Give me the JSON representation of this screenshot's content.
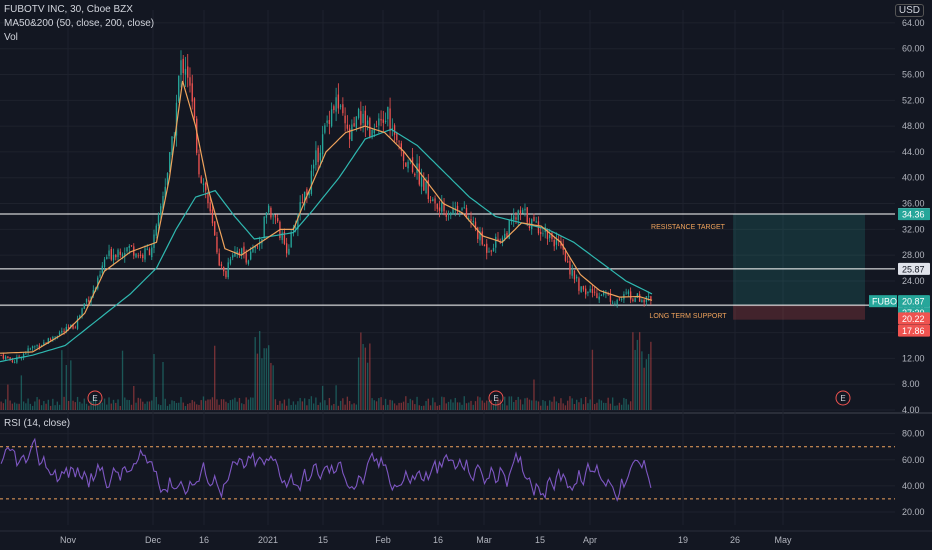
{
  "header": {
    "symbol_line": "FUBOTV INC, 30, Cboe BZX",
    "ma_line": "MA50&200 (50, close, 200, close)",
    "vol_line": "Vol",
    "currency": "USD"
  },
  "rsi_header": "RSI (14, close)",
  "chart_data": {
    "type": "candlestick",
    "title": "FUBOTV INC, 30, Cboe BZX",
    "price_axis": {
      "ticks": [
        "64.00",
        "60.00",
        "56.00",
        "52.00",
        "48.00",
        "44.00",
        "40.00",
        "36.00",
        "32.00",
        "28.00",
        "24.00",
        "20.00",
        "16.00",
        "12.00",
        "8.00",
        "4.00"
      ],
      "range": [
        4,
        66
      ]
    },
    "rsi_axis": {
      "ticks": [
        "80.00",
        "60.00",
        "40.00",
        "20.00"
      ],
      "range": [
        10,
        92
      ],
      "bands": [
        70,
        30
      ]
    },
    "x_labels": [
      "Nov",
      "Dec",
      "16",
      "2021",
      "15",
      "Feb",
      "16",
      "Mar",
      "15",
      "Apr",
      "19",
      "26",
      "May"
    ],
    "price_path": [
      [
        0,
        12.5
      ],
      [
        0.02,
        11.5
      ],
      [
        0.035,
        12.8
      ],
      [
        0.05,
        13.8
      ],
      [
        0.07,
        14.6
      ],
      [
        0.085,
        15.8
      ],
      [
        0.1,
        16.3
      ],
      [
        0.115,
        17.3
      ],
      [
        0.13,
        21
      ],
      [
        0.14,
        22
      ],
      [
        0.15,
        24
      ],
      [
        0.16,
        27.5
      ],
      [
        0.18,
        28.8
      ],
      [
        0.2,
        29.2
      ],
      [
        0.215,
        27.8
      ],
      [
        0.23,
        29
      ],
      [
        0.24,
        32
      ],
      [
        0.25,
        38
      ],
      [
        0.258,
        42
      ],
      [
        0.265,
        46
      ],
      [
        0.275,
        57
      ],
      [
        0.285,
        58
      ],
      [
        0.29,
        54
      ],
      [
        0.298,
        48
      ],
      [
        0.305,
        41
      ],
      [
        0.315,
        38
      ],
      [
        0.322,
        34
      ],
      [
        0.33,
        30
      ],
      [
        0.338,
        26
      ],
      [
        0.345,
        24.6
      ],
      [
        0.352,
        28
      ],
      [
        0.36,
        29
      ],
      [
        0.37,
        28.5
      ],
      [
        0.38,
        27.5
      ],
      [
        0.39,
        28.8
      ],
      [
        0.4,
        30.5
      ],
      [
        0.41,
        35.5
      ],
      [
        0.42,
        34
      ],
      [
        0.43,
        31
      ],
      [
        0.44,
        29
      ],
      [
        0.45,
        31.5
      ],
      [
        0.46,
        36
      ],
      [
        0.475,
        39
      ],
      [
        0.485,
        43
      ],
      [
        0.495,
        46
      ],
      [
        0.505,
        50
      ],
      [
        0.515,
        52
      ],
      [
        0.525,
        49
      ],
      [
        0.535,
        46
      ],
      [
        0.545,
        48
      ],
      [
        0.555,
        50
      ],
      [
        0.565,
        48
      ],
      [
        0.575,
        47
      ],
      [
        0.585,
        48
      ],
      [
        0.595,
        50
      ],
      [
        0.605,
        46
      ],
      [
        0.615,
        44
      ],
      [
        0.625,
        43
      ],
      [
        0.635,
        42
      ],
      [
        0.645,
        40
      ],
      [
        0.655,
        38
      ],
      [
        0.665,
        36
      ],
      [
        0.675,
        35
      ],
      [
        0.685,
        35
      ],
      [
        0.695,
        35
      ],
      [
        0.705,
        36
      ],
      [
        0.715,
        34
      ],
      [
        0.725,
        33
      ],
      [
        0.735,
        31
      ],
      [
        0.745,
        29
      ],
      [
        0.755,
        29.5
      ],
      [
        0.765,
        30.5
      ],
      [
        0.775,
        31
      ],
      [
        0.785,
        33
      ],
      [
        0.795,
        34
      ],
      [
        0.805,
        34.5
      ],
      [
        0.815,
        33
      ],
      [
        0.825,
        32.5
      ],
      [
        0.835,
        32
      ],
      [
        0.845,
        31
      ],
      [
        0.855,
        30
      ],
      [
        0.865,
        28
      ],
      [
        0.875,
        26
      ],
      [
        0.885,
        24
      ],
      [
        0.895,
        22
      ],
      [
        0.905,
        22.5
      ],
      [
        0.915,
        22
      ],
      [
        0.925,
        22.3
      ],
      [
        0.935,
        21.5
      ],
      [
        0.945,
        21
      ],
      [
        0.955,
        21.2
      ],
      [
        0.965,
        22
      ],
      [
        0.975,
        21.5
      ],
      [
        0.985,
        21.3
      ],
      [
        1,
        20.87
      ]
    ],
    "ma_fast_path": [
      [
        0,
        12.8
      ],
      [
        0.05,
        13
      ],
      [
        0.1,
        16
      ],
      [
        0.13,
        19
      ],
      [
        0.16,
        25.5
      ],
      [
        0.2,
        28.5
      ],
      [
        0.24,
        30
      ],
      [
        0.26,
        40
      ],
      [
        0.28,
        55
      ],
      [
        0.3,
        48
      ],
      [
        0.32,
        38
      ],
      [
        0.345,
        29
      ],
      [
        0.37,
        28
      ],
      [
        0.4,
        30
      ],
      [
        0.43,
        32
      ],
      [
        0.45,
        32
      ],
      [
        0.47,
        37
      ],
      [
        0.5,
        44
      ],
      [
        0.53,
        47
      ],
      [
        0.56,
        48
      ],
      [
        0.59,
        47
      ],
      [
        0.62,
        44
      ],
      [
        0.65,
        40
      ],
      [
        0.68,
        36
      ],
      [
        0.71,
        34.5
      ],
      [
        0.74,
        31
      ],
      [
        0.77,
        30
      ],
      [
        0.8,
        33
      ],
      [
        0.83,
        32.5
      ],
      [
        0.86,
        30
      ],
      [
        0.89,
        25
      ],
      [
        0.92,
        22.5
      ],
      [
        0.95,
        21.5
      ],
      [
        0.98,
        21.6
      ],
      [
        1,
        21
      ]
    ],
    "ma_slow_path": [
      [
        0,
        11.5
      ],
      [
        0.05,
        12.5
      ],
      [
        0.1,
        14
      ],
      [
        0.15,
        18
      ],
      [
        0.2,
        22
      ],
      [
        0.24,
        26
      ],
      [
        0.27,
        32
      ],
      [
        0.3,
        37
      ],
      [
        0.33,
        38
      ],
      [
        0.36,
        34
      ],
      [
        0.39,
        30.5
      ],
      [
        0.42,
        31
      ],
      [
        0.45,
        31.5
      ],
      [
        0.48,
        35
      ],
      [
        0.52,
        40
      ],
      [
        0.56,
        46
      ],
      [
        0.6,
        47.5
      ],
      [
        0.64,
        45
      ],
      [
        0.68,
        41
      ],
      [
        0.72,
        37
      ],
      [
        0.76,
        34
      ],
      [
        0.8,
        33
      ],
      [
        0.84,
        32
      ],
      [
        0.88,
        30
      ],
      [
        0.92,
        27
      ],
      [
        0.96,
        24
      ],
      [
        1,
        22
      ]
    ],
    "horizontal_levels": [
      {
        "value": 34.38,
        "label": "34.38",
        "color": "#ffffff"
      },
      {
        "value": 25.87,
        "label": "25.87",
        "color": "#ffffff"
      },
      {
        "value": 20.26,
        "label": "20.26",
        "color": "#ffffff"
      }
    ],
    "price_tags": [
      {
        "value": 34.36,
        "label": "34.36",
        "color": "#26a69a"
      },
      {
        "value": 20.87,
        "label": "20.87",
        "prefix": "FUBO",
        "sub": "27:30",
        "color": "#26a69a"
      },
      {
        "value": 20.22,
        "label": "20.22",
        "color": "#ef5350"
      },
      {
        "value": 17.86,
        "label": "17.86",
        "color": "#ef5350"
      }
    ],
    "annotations": [
      {
        "text": "RESISTANCE TARGET",
        "value": 32.5
      },
      {
        "text": "LONG TERM SUPPORT",
        "value": 18.7
      }
    ],
    "position_box": {
      "entry": 20.26,
      "target": 34.36,
      "stop": 18.0
    },
    "earnings_markers": [
      "E",
      "E",
      "E"
    ],
    "colors": {
      "background": "#131722",
      "up": "#26a69a",
      "down": "#ef5350",
      "ma_fast": "#f0a35c",
      "ma_slow": "#2fb8b0",
      "rsi": "#7e57c2",
      "annotation": "#f0a35c"
    }
  }
}
